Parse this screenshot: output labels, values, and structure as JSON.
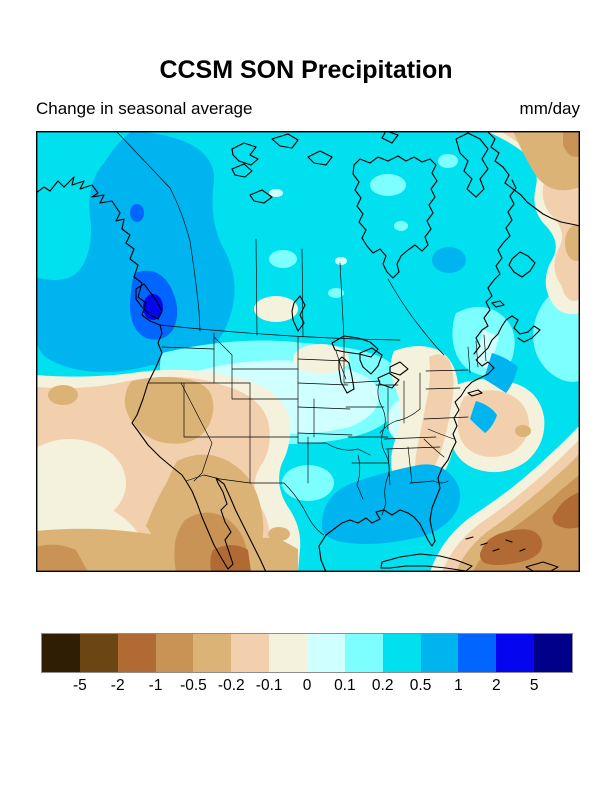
{
  "figure": {
    "title": "CCSM SON Precipitation",
    "subtitle_left": "Change in seasonal average",
    "subtitle_right": "mm/day"
  },
  "colorbar": {
    "tick_labels": [
      "-5",
      "-2",
      "-1",
      "-0.5",
      "-0.2",
      "-0.1",
      "0",
      "0.1",
      "0.2",
      "0.5",
      "1",
      "2",
      "5"
    ],
    "colors": [
      "#2f1e04",
      "#6b4613",
      "#b16a33",
      "#ca9356",
      "#dbb376",
      "#f2d0ae",
      "#f4f2dc",
      "#cfffff",
      "#7dffff",
      "#00e0ee",
      "#00b4f0",
      "#0066ff",
      "#0505f0",
      "#00008b"
    ]
  },
  "map": {
    "region": "North America",
    "depicts": "Filled contours of change in SON seasonal-average precipitation (mm/day); blues = increase (Pacific Northwest coast, Gulf of Mexico, Florida, central Quebec), browns = decrease (Southwest US, Baja California, northern Mexico, subtropical Atlantic, Greenland)"
  }
}
